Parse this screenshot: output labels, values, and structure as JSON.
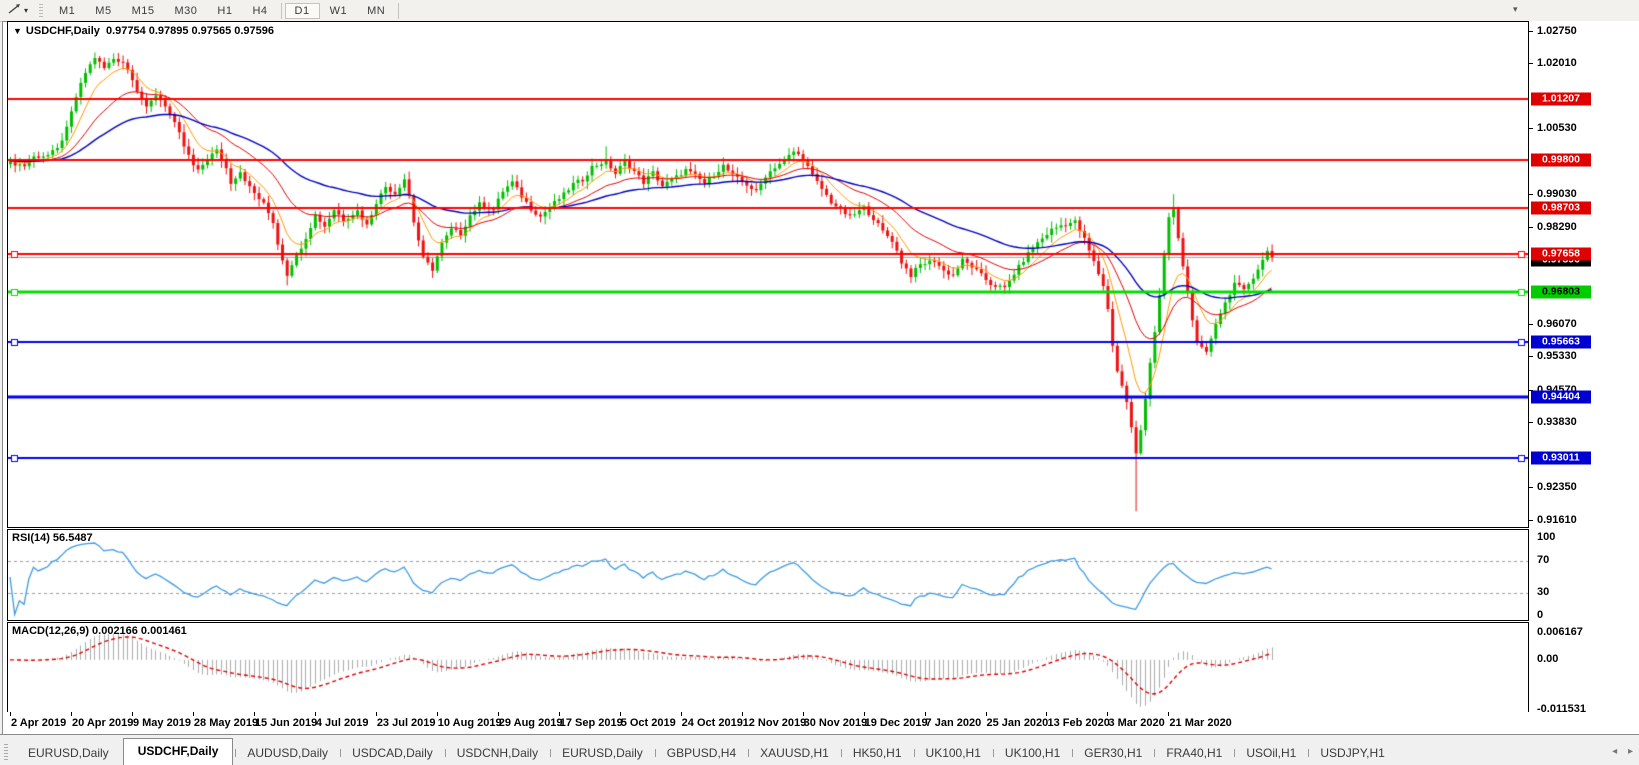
{
  "toolbar": {
    "timeframes": [
      "M1",
      "M5",
      "M15",
      "M30",
      "H1",
      "H4",
      "D1",
      "W1",
      "MN"
    ],
    "active_timeframe": "D1"
  },
  "chart": {
    "title": "USDCHF,Daily",
    "collapse_icon": "▼",
    "ohlc": {
      "open": "0.97754",
      "high": "0.97895",
      "low": "0.97565",
      "close": "0.97596"
    },
    "rsi_label": "RSI(14)",
    "rsi_value": "56.5487",
    "macd_label": "MACD(12,26,9)",
    "macd_value_main": "0.002166",
    "macd_value_signal": "0.001461"
  },
  "chart_data": {
    "type": "candlestick",
    "symbol": "USDCHF",
    "timeframe": "Daily",
    "current_price": 0.97596,
    "num_candles": 270,
    "candle_spacing": 4.69,
    "candle_width": 3,
    "y_axis": {
      "price_top": 1.02955,
      "price_bottom": 0.91441,
      "tick_labels": [
        "1.02750",
        "1.02010",
        "1.00530",
        "0.99030",
        "0.98290",
        "0.96070",
        "0.95330",
        "0.94570",
        "0.93830",
        "0.92350",
        "0.91610"
      ]
    },
    "x_axis_labels": [
      {
        "text": "2 Apr 2019",
        "index": 0
      },
      {
        "text": "20 Apr 2019",
        "index": 13
      },
      {
        "text": "9 May 2019",
        "index": 26
      },
      {
        "text": "28 May 2019",
        "index": 39
      },
      {
        "text": "15 Jun 2019",
        "index": 52
      },
      {
        "text": "4 Jul 2019",
        "index": 65
      },
      {
        "text": "23 Jul 2019",
        "index": 78
      },
      {
        "text": "10 Aug 2019",
        "index": 91
      },
      {
        "text": "29 Aug 2019",
        "index": 104
      },
      {
        "text": "17 Sep 2019",
        "index": 117
      },
      {
        "text": "5 Oct 2019",
        "index": 130
      },
      {
        "text": "24 Oct 2019",
        "index": 143
      },
      {
        "text": "12 Nov 2019",
        "index": 156
      },
      {
        "text": "30 Nov 2019",
        "index": 169
      },
      {
        "text": "19 Dec 2019",
        "index": 182
      },
      {
        "text": "7 Jan 2020",
        "index": 195
      },
      {
        "text": "25 Jan 2020",
        "index": 208
      },
      {
        "text": "13 Feb 2020",
        "index": 221
      },
      {
        "text": "3 Mar 2020",
        "index": 234
      },
      {
        "text": "21 Mar 2020",
        "index": 247
      }
    ],
    "close_anchors": [
      [
        0,
        0.9975
      ],
      [
        3,
        0.9968
      ],
      [
        5,
        0.9988
      ],
      [
        8,
        0.9992
      ],
      [
        10,
        1.0005
      ],
      [
        12,
        1.0052
      ],
      [
        14,
        1.0125
      ],
      [
        16,
        1.018
      ],
      [
        18,
        1.0215
      ],
      [
        20,
        1.019
      ],
      [
        22,
        1.0212
      ],
      [
        24,
        1.0205
      ],
      [
        26,
        1.0168
      ],
      [
        27,
        1.014
      ],
      [
        29,
        1.0098
      ],
      [
        31,
        1.013
      ],
      [
        33,
        1.0106
      ],
      [
        34,
        1.0085
      ],
      [
        36,
        1.004
      ],
      [
        37,
        1.0012
      ],
      [
        39,
        0.9968
      ],
      [
        40,
        0.9955
      ],
      [
        42,
        0.9985
      ],
      [
        44,
        1.0002
      ],
      [
        46,
        0.9962
      ],
      [
        47,
        0.993
      ],
      [
        49,
        0.9955
      ],
      [
        51,
        0.9918
      ],
      [
        52,
        0.9905
      ],
      [
        54,
        0.988
      ],
      [
        56,
        0.984
      ],
      [
        57,
        0.979
      ],
      [
        59,
        0.972
      ],
      [
        60,
        0.9745
      ],
      [
        61,
        0.9762
      ],
      [
        63,
        0.9805
      ],
      [
        65,
        0.9855
      ],
      [
        67,
        0.983
      ],
      [
        69,
        0.9868
      ],
      [
        71,
        0.9845
      ],
      [
        74,
        0.9865
      ],
      [
        76,
        0.9832
      ],
      [
        78,
        0.9885
      ],
      [
        80,
        0.992
      ],
      [
        82,
        0.9905
      ],
      [
        84,
        0.9938
      ],
      [
        85,
        0.99
      ],
      [
        86,
        0.984
      ],
      [
        88,
        0.9756
      ],
      [
        90,
        0.9732
      ],
      [
        92,
        0.979
      ],
      [
        94,
        0.9822
      ],
      [
        96,
        0.9812
      ],
      [
        98,
        0.9855
      ],
      [
        100,
        0.988
      ],
      [
        103,
        0.9868
      ],
      [
        105,
        0.991
      ],
      [
        107,
        0.993
      ],
      [
        109,
        0.9898
      ],
      [
        111,
        0.987
      ],
      [
        113,
        0.9852
      ],
      [
        115,
        0.9874
      ],
      [
        118,
        0.9902
      ],
      [
        120,
        0.9926
      ],
      [
        122,
        0.9936
      ],
      [
        124,
        0.9965
      ],
      [
        127,
        0.9978
      ],
      [
        129,
        0.995
      ],
      [
        131,
        0.9978
      ],
      [
        133,
        0.9955
      ],
      [
        135,
        0.993
      ],
      [
        137,
        0.9952
      ],
      [
        139,
        0.9922
      ],
      [
        142,
        0.9942
      ],
      [
        144,
        0.9958
      ],
      [
        146,
        0.9945
      ],
      [
        148,
        0.9928
      ],
      [
        150,
        0.9948
      ],
      [
        152,
        0.9968
      ],
      [
        154,
        0.9945
      ],
      [
        157,
        0.9925
      ],
      [
        159,
        0.9908
      ],
      [
        161,
        0.9945
      ],
      [
        163,
        0.9965
      ],
      [
        165,
        0.998
      ],
      [
        167,
        1.0
      ],
      [
        169,
        0.9985
      ],
      [
        171,
        0.9945
      ],
      [
        173,
        0.9915
      ],
      [
        175,
        0.9885
      ],
      [
        177,
        0.9868
      ],
      [
        179,
        0.985
      ],
      [
        182,
        0.9872
      ],
      [
        184,
        0.9848
      ],
      [
        186,
        0.9818
      ],
      [
        188,
        0.9798
      ],
      [
        190,
        0.9748
      ],
      [
        192,
        0.9718
      ],
      [
        194,
        0.9742
      ],
      [
        197,
        0.9752
      ],
      [
        199,
        0.9728
      ],
      [
        201,
        0.9718
      ],
      [
        203,
        0.9752
      ],
      [
        205,
        0.9738
      ],
      [
        207,
        0.9718
      ],
      [
        209,
        0.9698
      ],
      [
        212,
        0.9688
      ],
      [
        214,
        0.9722
      ],
      [
        216,
        0.9752
      ],
      [
        218,
        0.9782
      ],
      [
        220,
        0.9802
      ],
      [
        222,
        0.9822
      ],
      [
        224,
        0.9832
      ],
      [
        227,
        0.984
      ],
      [
        229,
        0.98
      ],
      [
        231,
        0.9748
      ],
      [
        233,
        0.9695
      ],
      [
        234,
        0.964
      ],
      [
        235,
        0.956
      ],
      [
        236,
        0.95
      ],
      [
        238,
        0.943
      ],
      [
        239,
        0.937
      ],
      [
        240,
        0.931
      ],
      [
        241,
        0.9365
      ],
      [
        242,
        0.944
      ],
      [
        243,
        0.952
      ],
      [
        244,
        0.959
      ],
      [
        245,
        0.967
      ],
      [
        246,
        0.976
      ],
      [
        247,
        0.985
      ],
      [
        248,
        0.9868
      ],
      [
        249,
        0.98
      ],
      [
        250,
        0.974
      ],
      [
        251,
        0.968
      ],
      [
        252,
        0.962
      ],
      [
        253,
        0.956
      ],
      [
        255,
        0.954
      ],
      [
        257,
        0.961
      ],
      [
        259,
        0.9655
      ],
      [
        261,
        0.97
      ],
      [
        263,
        0.9682
      ],
      [
        265,
        0.9715
      ],
      [
        267,
        0.9752
      ],
      [
        268,
        0.9772
      ],
      [
        269,
        0.97596
      ]
    ],
    "wick_overrides": {
      "18": {
        "high": 1.0226
      },
      "22": {
        "high": 1.0224
      },
      "59": {
        "low": 0.9695
      },
      "90": {
        "low": 0.9712
      },
      "127": {
        "high": 1.0012
      },
      "240": {
        "low": 0.918
      },
      "248": {
        "high": 0.9903
      }
    },
    "horizontal_lines": [
      {
        "price": 1.01207,
        "label": "1.01207",
        "color": "#FF0000",
        "label_bg": "#E00000",
        "label_fg": "#FFFFFF",
        "width": 2,
        "handles": false
      },
      {
        "price": 0.998,
        "label": "0.99800",
        "color": "#FF0000",
        "label_bg": "#E00000",
        "label_fg": "#FFFFFF",
        "width": 2,
        "handles": false
      },
      {
        "price": 0.98703,
        "label": "0.98703",
        "color": "#FF0000",
        "label_bg": "#E00000",
        "label_fg": "#FFFFFF",
        "width": 2,
        "handles": false
      },
      {
        "price": 0.97658,
        "label": "0.97658",
        "color": "#FF0000",
        "label_bg": "#E00000",
        "label_fg": "#FFFFFF",
        "width": 2,
        "handles": true
      },
      {
        "price": 0.96803,
        "label": "0.96803",
        "color": "#00DD00",
        "label_bg": "#00CC00",
        "label_fg": "#000000",
        "width": 3,
        "handles": true
      },
      {
        "price": 0.95663,
        "label": "0.95663",
        "color": "#0000EE",
        "label_bg": "#0000D0",
        "label_fg": "#FFFFFF",
        "width": 2,
        "handles": true
      },
      {
        "price": 0.94404,
        "label": "0.94404",
        "color": "#0000EE",
        "label_bg": "#0000D0",
        "label_fg": "#FFFFFF",
        "width": 3,
        "handles": false
      },
      {
        "price": 0.93011,
        "label": "0.93011",
        "color": "#0000EE",
        "label_bg": "#0000D0",
        "label_fg": "#FFFFFF",
        "width": 2,
        "handles": true
      }
    ],
    "current_price_badge": {
      "label": "0.97596",
      "bg": "#000000",
      "fg": "#FFFFFF",
      "line_color": "#AAAAAA"
    },
    "moving_averages": [
      {
        "period": 8,
        "color": "#FF9900",
        "width": 1
      },
      {
        "period": 21,
        "color": "#DD0000",
        "width": 1
      },
      {
        "period": 48,
        "color": "#0000BB",
        "width": 1.4
      }
    ],
    "style": {
      "bull": "#00BE00",
      "bear": "#EE1111"
    },
    "indicators": {
      "rsi": {
        "period": 14,
        "color": "#3E9AE0",
        "levels": [
          70,
          30
        ],
        "axis_labels": [
          {
            "text": "100",
            "value": 100
          },
          {
            "text": "70",
            "value": 70
          },
          {
            "text": "30",
            "value": 30
          },
          {
            "text": "0",
            "value": 0
          }
        ]
      },
      "macd": {
        "fast": 12,
        "slow": 26,
        "signal": 9,
        "hist_color": "#ABABAB",
        "signal_color": "#DD0000",
        "scale_max": 0.006167,
        "scale_min": -0.011531,
        "axis_labels": [
          {
            "text": "0.006167",
            "value": 0.006167
          },
          {
            "text": "0.00",
            "value": 0
          },
          {
            "text": "-0.011531",
            "value": -0.011531
          }
        ]
      }
    }
  },
  "tabs": {
    "active_index": 1,
    "items": [
      "EURUSD,Daily",
      "USDCHF,Daily",
      "AUDUSD,Daily",
      "USDCAD,Daily",
      "USDCNH,Daily",
      "EURUSD,Daily",
      "GBPUSD,H4",
      "XAUUSD,H1",
      "HK50,H1",
      "UK100,H1",
      "UK100,H1",
      "GER30,H1",
      "FRA40,H1",
      "USOil,H1",
      "USDJPY,H1"
    ],
    "scroll_left_icon": "◂",
    "scroll_right_icon": "▸"
  }
}
